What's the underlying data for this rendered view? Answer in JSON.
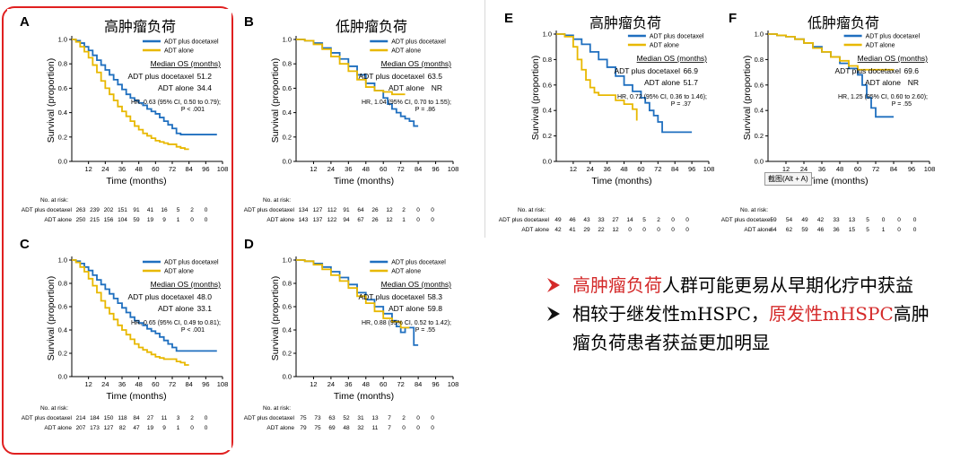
{
  "colors": {
    "series1": "#1f6fbf",
    "series2": "#e8b800",
    "highlight": "#e02020",
    "emphasis": "#d42a2a"
  },
  "bullets": [
    {
      "parts": [
        {
          "text": "高肿瘤负荷",
          "red": true
        },
        {
          "text": "人群可能更易从早期化疗中获益",
          "red": false
        }
      ]
    },
    {
      "parts": [
        {
          "text": "相较于继发性mHSPC，",
          "red": false
        },
        {
          "text": "原发性mHSPC",
          "red": true
        },
        {
          "text": "高肿瘤负荷患者获益更加明显",
          "red": false
        }
      ]
    }
  ],
  "tooltip": "截图(Alt + A)",
  "chart_data": [
    {
      "label": "A",
      "title": "高肿瘤负荷",
      "type": "line",
      "xlabel": "Time (months)",
      "ylabel": "Survival (proportion)",
      "xticks": [
        12,
        24,
        36,
        48,
        60,
        72,
        84,
        96,
        108
      ],
      "yticks": [
        "0.0",
        "0.2",
        "0.4",
        "0.6",
        "0.8",
        "1.0"
      ],
      "xlim": [
        0,
        108
      ],
      "ylim": [
        0,
        1
      ],
      "legend": [
        "ADT plus docetaxel",
        "ADT alone"
      ],
      "median_header": "Median OS (months)",
      "median_rows": [
        {
          "label": "ADT plus docetaxel",
          "value": "51.2"
        },
        {
          "label": "ADT alone",
          "value": "34.4"
        }
      ],
      "hr_lines": [
        "HR, 0.63 (95% CI, 0.50 to 0.79);",
        "P < .001"
      ],
      "series": [
        {
          "name": "ADT plus docetaxel",
          "x": [
            0,
            3,
            6,
            9,
            12,
            15,
            18,
            21,
            24,
            27,
            30,
            33,
            36,
            39,
            42,
            45,
            48,
            51,
            54,
            57,
            60,
            63,
            66,
            69,
            72,
            75,
            78,
            81,
            84,
            96,
            104
          ],
          "y": [
            1,
            0.99,
            0.97,
            0.94,
            0.91,
            0.87,
            0.83,
            0.79,
            0.75,
            0.71,
            0.67,
            0.63,
            0.59,
            0.55,
            0.52,
            0.5,
            0.48,
            0.46,
            0.43,
            0.41,
            0.39,
            0.36,
            0.33,
            0.3,
            0.27,
            0.23,
            0.22,
            0.22,
            0.22,
            0.22,
            0.22
          ]
        },
        {
          "name": "ADT alone",
          "x": [
            0,
            3,
            6,
            9,
            12,
            15,
            18,
            21,
            24,
            27,
            30,
            33,
            36,
            39,
            42,
            45,
            48,
            51,
            54,
            57,
            60,
            63,
            66,
            69,
            72,
            75,
            78,
            81,
            84
          ],
          "y": [
            1,
            0.98,
            0.94,
            0.9,
            0.85,
            0.79,
            0.73,
            0.66,
            0.6,
            0.55,
            0.5,
            0.45,
            0.41,
            0.37,
            0.33,
            0.29,
            0.26,
            0.23,
            0.21,
            0.19,
            0.17,
            0.16,
            0.15,
            0.14,
            0.14,
            0.12,
            0.11,
            0.1,
            0.1
          ]
        }
      ],
      "risk_header": "No. at risk:",
      "risk": [
        {
          "label": "ADT plus docetaxel",
          "values": [
            "263",
            "239",
            "202",
            "151",
            "91",
            "41",
            "16",
            "5",
            "2",
            "0"
          ]
        },
        {
          "label": "ADT alone",
          "values": [
            "250",
            "215",
            "156",
            "104",
            "59",
            "19",
            "9",
            "1",
            "0",
            "0"
          ]
        }
      ]
    },
    {
      "label": "B",
      "title": "低肿瘤负荷",
      "type": "line",
      "xlabel": "Time (months)",
      "ylabel": "Survival (proportion)",
      "xticks": [
        12,
        24,
        36,
        48,
        60,
        72,
        84,
        96,
        108
      ],
      "yticks": [
        "0.0",
        "0.2",
        "0.4",
        "0.6",
        "0.8",
        "1.0"
      ],
      "xlim": [
        0,
        108
      ],
      "ylim": [
        0,
        1
      ],
      "legend": [
        "ADT plus docetaxel",
        "ADT alone"
      ],
      "median_header": "Median OS (months)",
      "median_rows": [
        {
          "label": "ADT plus docetaxel",
          "value": "63.5"
        },
        {
          "label": "ADT alone",
          "value": "NR"
        }
      ],
      "hr_lines": [
        "HR, 1.04 (95% CI, 0.70 to 1.55);",
        "P = .86"
      ],
      "series": [
        {
          "name": "ADT plus docetaxel",
          "x": [
            0,
            6,
            12,
            18,
            24,
            30,
            36,
            42,
            48,
            54,
            60,
            63,
            66,
            69,
            72,
            75,
            78,
            81,
            84
          ],
          "y": [
            1,
            0.99,
            0.97,
            0.93,
            0.89,
            0.84,
            0.78,
            0.71,
            0.64,
            0.58,
            0.52,
            0.47,
            0.43,
            0.4,
            0.37,
            0.35,
            0.33,
            0.29,
            0.29
          ]
        },
        {
          "name": "ADT alone",
          "x": [
            0,
            6,
            12,
            18,
            24,
            30,
            36,
            42,
            48,
            54,
            60,
            66,
            72,
            75
          ],
          "y": [
            1,
            0.99,
            0.96,
            0.92,
            0.86,
            0.8,
            0.74,
            0.67,
            0.61,
            0.58,
            0.57,
            0.55,
            0.55,
            0.55
          ]
        }
      ],
      "risk_header": "No. at risk:",
      "risk": [
        {
          "label": "ADT plus docetaxel",
          "values": [
            "134",
            "127",
            "112",
            "91",
            "64",
            "26",
            "12",
            "2",
            "0",
            "0"
          ]
        },
        {
          "label": "ADT alone",
          "values": [
            "143",
            "137",
            "122",
            "94",
            "67",
            "26",
            "12",
            "1",
            "0",
            "0"
          ]
        }
      ]
    },
    {
      "label": "C",
      "title": "",
      "type": "line",
      "xlabel": "Time (months)",
      "ylabel": "Survival (proportion)",
      "xticks": [
        12,
        24,
        36,
        48,
        60,
        72,
        84,
        96,
        108
      ],
      "yticks": [
        "0.0",
        "0.2",
        "0.4",
        "0.6",
        "0.8",
        "1.0"
      ],
      "xlim": [
        0,
        108
      ],
      "ylim": [
        0,
        1
      ],
      "legend": [
        "ADT plus docetaxel",
        "ADT alone"
      ],
      "median_header": "Median OS (months)",
      "median_rows": [
        {
          "label": "ADT plus docetaxel",
          "value": "48.0"
        },
        {
          "label": "ADT alone",
          "value": "33.1"
        }
      ],
      "hr_lines": [
        "HR, 0.65 (95% CI, 0.49 to 0.81);",
        "P < .001"
      ],
      "series": [
        {
          "name": "ADT plus docetaxel",
          "x": [
            0,
            3,
            6,
            9,
            12,
            15,
            18,
            21,
            24,
            27,
            30,
            33,
            36,
            39,
            42,
            45,
            48,
            51,
            54,
            57,
            60,
            63,
            66,
            69,
            72,
            75,
            78,
            84,
            96,
            104
          ],
          "y": [
            1,
            0.99,
            0.97,
            0.94,
            0.91,
            0.87,
            0.83,
            0.79,
            0.75,
            0.71,
            0.67,
            0.63,
            0.59,
            0.55,
            0.51,
            0.48,
            0.46,
            0.44,
            0.41,
            0.39,
            0.37,
            0.34,
            0.31,
            0.28,
            0.25,
            0.22,
            0.22,
            0.22,
            0.22,
            0.22
          ]
        },
        {
          "name": "ADT alone",
          "x": [
            0,
            3,
            6,
            9,
            12,
            15,
            18,
            21,
            24,
            27,
            30,
            33,
            36,
            39,
            42,
            45,
            48,
            51,
            54,
            57,
            60,
            63,
            66,
            69,
            72,
            75,
            78,
            81,
            84
          ],
          "y": [
            1,
            0.98,
            0.94,
            0.9,
            0.84,
            0.78,
            0.72,
            0.65,
            0.59,
            0.54,
            0.49,
            0.44,
            0.4,
            0.36,
            0.32,
            0.28,
            0.25,
            0.23,
            0.21,
            0.19,
            0.17,
            0.16,
            0.15,
            0.15,
            0.15,
            0.13,
            0.12,
            0.1,
            0.1
          ]
        }
      ],
      "risk_header": "No. at risk:",
      "risk": [
        {
          "label": "ADT plus docetaxel",
          "values": [
            "214",
            "184",
            "150",
            "118",
            "84",
            "27",
            "11",
            "3",
            "2",
            "0"
          ]
        },
        {
          "label": "ADT alone",
          "values": [
            "207",
            "173",
            "127",
            "82",
            "47",
            "19",
            "9",
            "1",
            "0",
            "0"
          ]
        }
      ]
    },
    {
      "label": "D",
      "title": "",
      "type": "line",
      "xlabel": "Time (months)",
      "ylabel": "Survival (proportion)",
      "xticks": [
        12,
        24,
        36,
        48,
        60,
        72,
        84,
        96,
        108
      ],
      "yticks": [
        "0.0",
        "0.2",
        "0.4",
        "0.6",
        "0.8",
        "1.0"
      ],
      "xlim": [
        0,
        108
      ],
      "ylim": [
        0,
        1
      ],
      "legend": [
        "ADT plus docetaxel",
        "ADT alone"
      ],
      "median_header": "Median OS (months)",
      "median_rows": [
        {
          "label": "ADT plus docetaxel",
          "value": "58.3"
        },
        {
          "label": "ADT alone",
          "value": "59.8"
        }
      ],
      "hr_lines": [
        "HR, 0.88 (95% CI, 0.52 to 1.42);",
        "P = .55"
      ],
      "series": [
        {
          "name": "ADT plus docetaxel",
          "x": [
            0,
            6,
            12,
            18,
            24,
            30,
            36,
            42,
            48,
            54,
            60,
            66,
            69,
            72,
            75,
            78,
            81,
            84
          ],
          "y": [
            1,
            0.99,
            0.97,
            0.94,
            0.9,
            0.85,
            0.79,
            0.72,
            0.66,
            0.6,
            0.54,
            0.48,
            0.43,
            0.38,
            0.42,
            0.42,
            0.27,
            0.27
          ]
        },
        {
          "name": "ADT alone",
          "x": [
            0,
            6,
            12,
            18,
            24,
            30,
            36,
            42,
            48,
            54,
            60,
            66,
            72,
            78
          ],
          "y": [
            1,
            0.99,
            0.96,
            0.92,
            0.87,
            0.82,
            0.76,
            0.69,
            0.63,
            0.56,
            0.5,
            0.47,
            0.42,
            0.42
          ]
        }
      ],
      "risk_header": "No. at risk:",
      "risk": [
        {
          "label": "ADT plus docetaxel",
          "values": [
            "75",
            "73",
            "63",
            "52",
            "31",
            "13",
            "7",
            "2",
            "0",
            "0"
          ]
        },
        {
          "label": "ADT alone",
          "values": [
            "79",
            "75",
            "69",
            "48",
            "32",
            "11",
            "7",
            "0",
            "0",
            "0"
          ]
        }
      ]
    },
    {
      "label": "E",
      "title": "高肿瘤负荷",
      "type": "line",
      "xlabel": "Time (months)",
      "ylabel": "Survival (proportion)",
      "xticks": [
        12,
        24,
        36,
        48,
        60,
        72,
        84,
        96,
        108
      ],
      "yticks": [
        "0.0",
        "0.2",
        "0.4",
        "0.6",
        "0.8",
        "1.0"
      ],
      "xlim": [
        0,
        108
      ],
      "ylim": [
        0,
        1
      ],
      "legend": [
        "ADT plus docetaxel",
        "ADT alone"
      ],
      "median_header": "Median OS (months)",
      "median_rows": [
        {
          "label": "ADT plus docetaxel",
          "value": "66.9"
        },
        {
          "label": "ADT alone",
          "value": "51.7"
        }
      ],
      "hr_lines": [
        "HR, 0.72 (95% CI, 0.36 to 1.46);",
        "P = .37"
      ],
      "series": [
        {
          "name": "ADT plus docetaxel",
          "x": [
            0,
            6,
            12,
            18,
            24,
            30,
            36,
            42,
            48,
            54,
            60,
            63,
            66,
            69,
            72,
            75,
            78,
            84,
            96
          ],
          "y": [
            1,
            0.99,
            0.96,
            0.92,
            0.86,
            0.8,
            0.74,
            0.67,
            0.6,
            0.55,
            0.5,
            0.46,
            0.4,
            0.36,
            0.31,
            0.23,
            0.23,
            0.23,
            0.23
          ]
        },
        {
          "name": "ADT alone",
          "x": [
            0,
            6,
            12,
            15,
            18,
            21,
            24,
            27,
            30,
            36,
            42,
            48,
            54,
            57
          ],
          "y": [
            1,
            0.98,
            0.9,
            0.8,
            0.72,
            0.64,
            0.58,
            0.54,
            0.52,
            0.52,
            0.48,
            0.45,
            0.41,
            0.32
          ]
        }
      ],
      "risk_header": "No. at risk:",
      "risk": [
        {
          "label": "ADT plus docetaxel",
          "values": [
            "49",
            "46",
            "43",
            "33",
            "27",
            "14",
            "5",
            "2",
            "0",
            "0"
          ]
        },
        {
          "label": "ADT alone",
          "values": [
            "42",
            "41",
            "29",
            "22",
            "12",
            "0",
            "0",
            "0",
            "0",
            "0"
          ]
        }
      ]
    },
    {
      "label": "F",
      "title": "低肿瘤负荷",
      "type": "line",
      "xlabel": "Time (months)",
      "ylabel": "Survival (proportion)",
      "xticks": [
        12,
        24,
        36,
        48,
        60,
        72,
        84,
        96,
        108
      ],
      "yticks": [
        "0.0",
        "0.2",
        "0.4",
        "0.6",
        "0.8",
        "1.0"
      ],
      "xlim": [
        0,
        108
      ],
      "ylim": [
        0,
        1
      ],
      "legend": [
        "ADT plus docetaxel",
        "ADT alone"
      ],
      "median_header": "Median OS (months)",
      "median_rows": [
        {
          "label": "ADT plus docetaxel",
          "value": "69.6"
        },
        {
          "label": "ADT alone",
          "value": "NR"
        }
      ],
      "hr_lines": [
        "HR, 1.25 (95% CI, 0.60 to 2.60);",
        "P = .55"
      ],
      "series": [
        {
          "name": "ADT plus docetaxel",
          "x": [
            0,
            6,
            12,
            18,
            24,
            30,
            36,
            42,
            48,
            54,
            60,
            63,
            66,
            69,
            72,
            75,
            84
          ],
          "y": [
            1,
            0.99,
            0.98,
            0.96,
            0.93,
            0.9,
            0.86,
            0.82,
            0.77,
            0.73,
            0.68,
            0.6,
            0.5,
            0.42,
            0.35,
            0.35,
            0.35
          ]
        },
        {
          "name": "ADT alone",
          "x": [
            0,
            6,
            12,
            18,
            24,
            30,
            36,
            42,
            48,
            54,
            60,
            66,
            72,
            84
          ],
          "y": [
            1,
            0.99,
            0.98,
            0.96,
            0.93,
            0.89,
            0.86,
            0.82,
            0.79,
            0.75,
            0.72,
            0.72,
            0.72,
            0.72
          ]
        }
      ],
      "risk_header": "No. at risk:",
      "risk": [
        {
          "label": "ADT plus docetaxel",
          "values": [
            "59",
            "54",
            "49",
            "42",
            "33",
            "13",
            "5",
            "0",
            "0",
            "0"
          ]
        },
        {
          "label": "ADT alone",
          "values": [
            "64",
            "62",
            "59",
            "46",
            "36",
            "15",
            "5",
            "1",
            "0",
            "0"
          ]
        }
      ]
    }
  ]
}
